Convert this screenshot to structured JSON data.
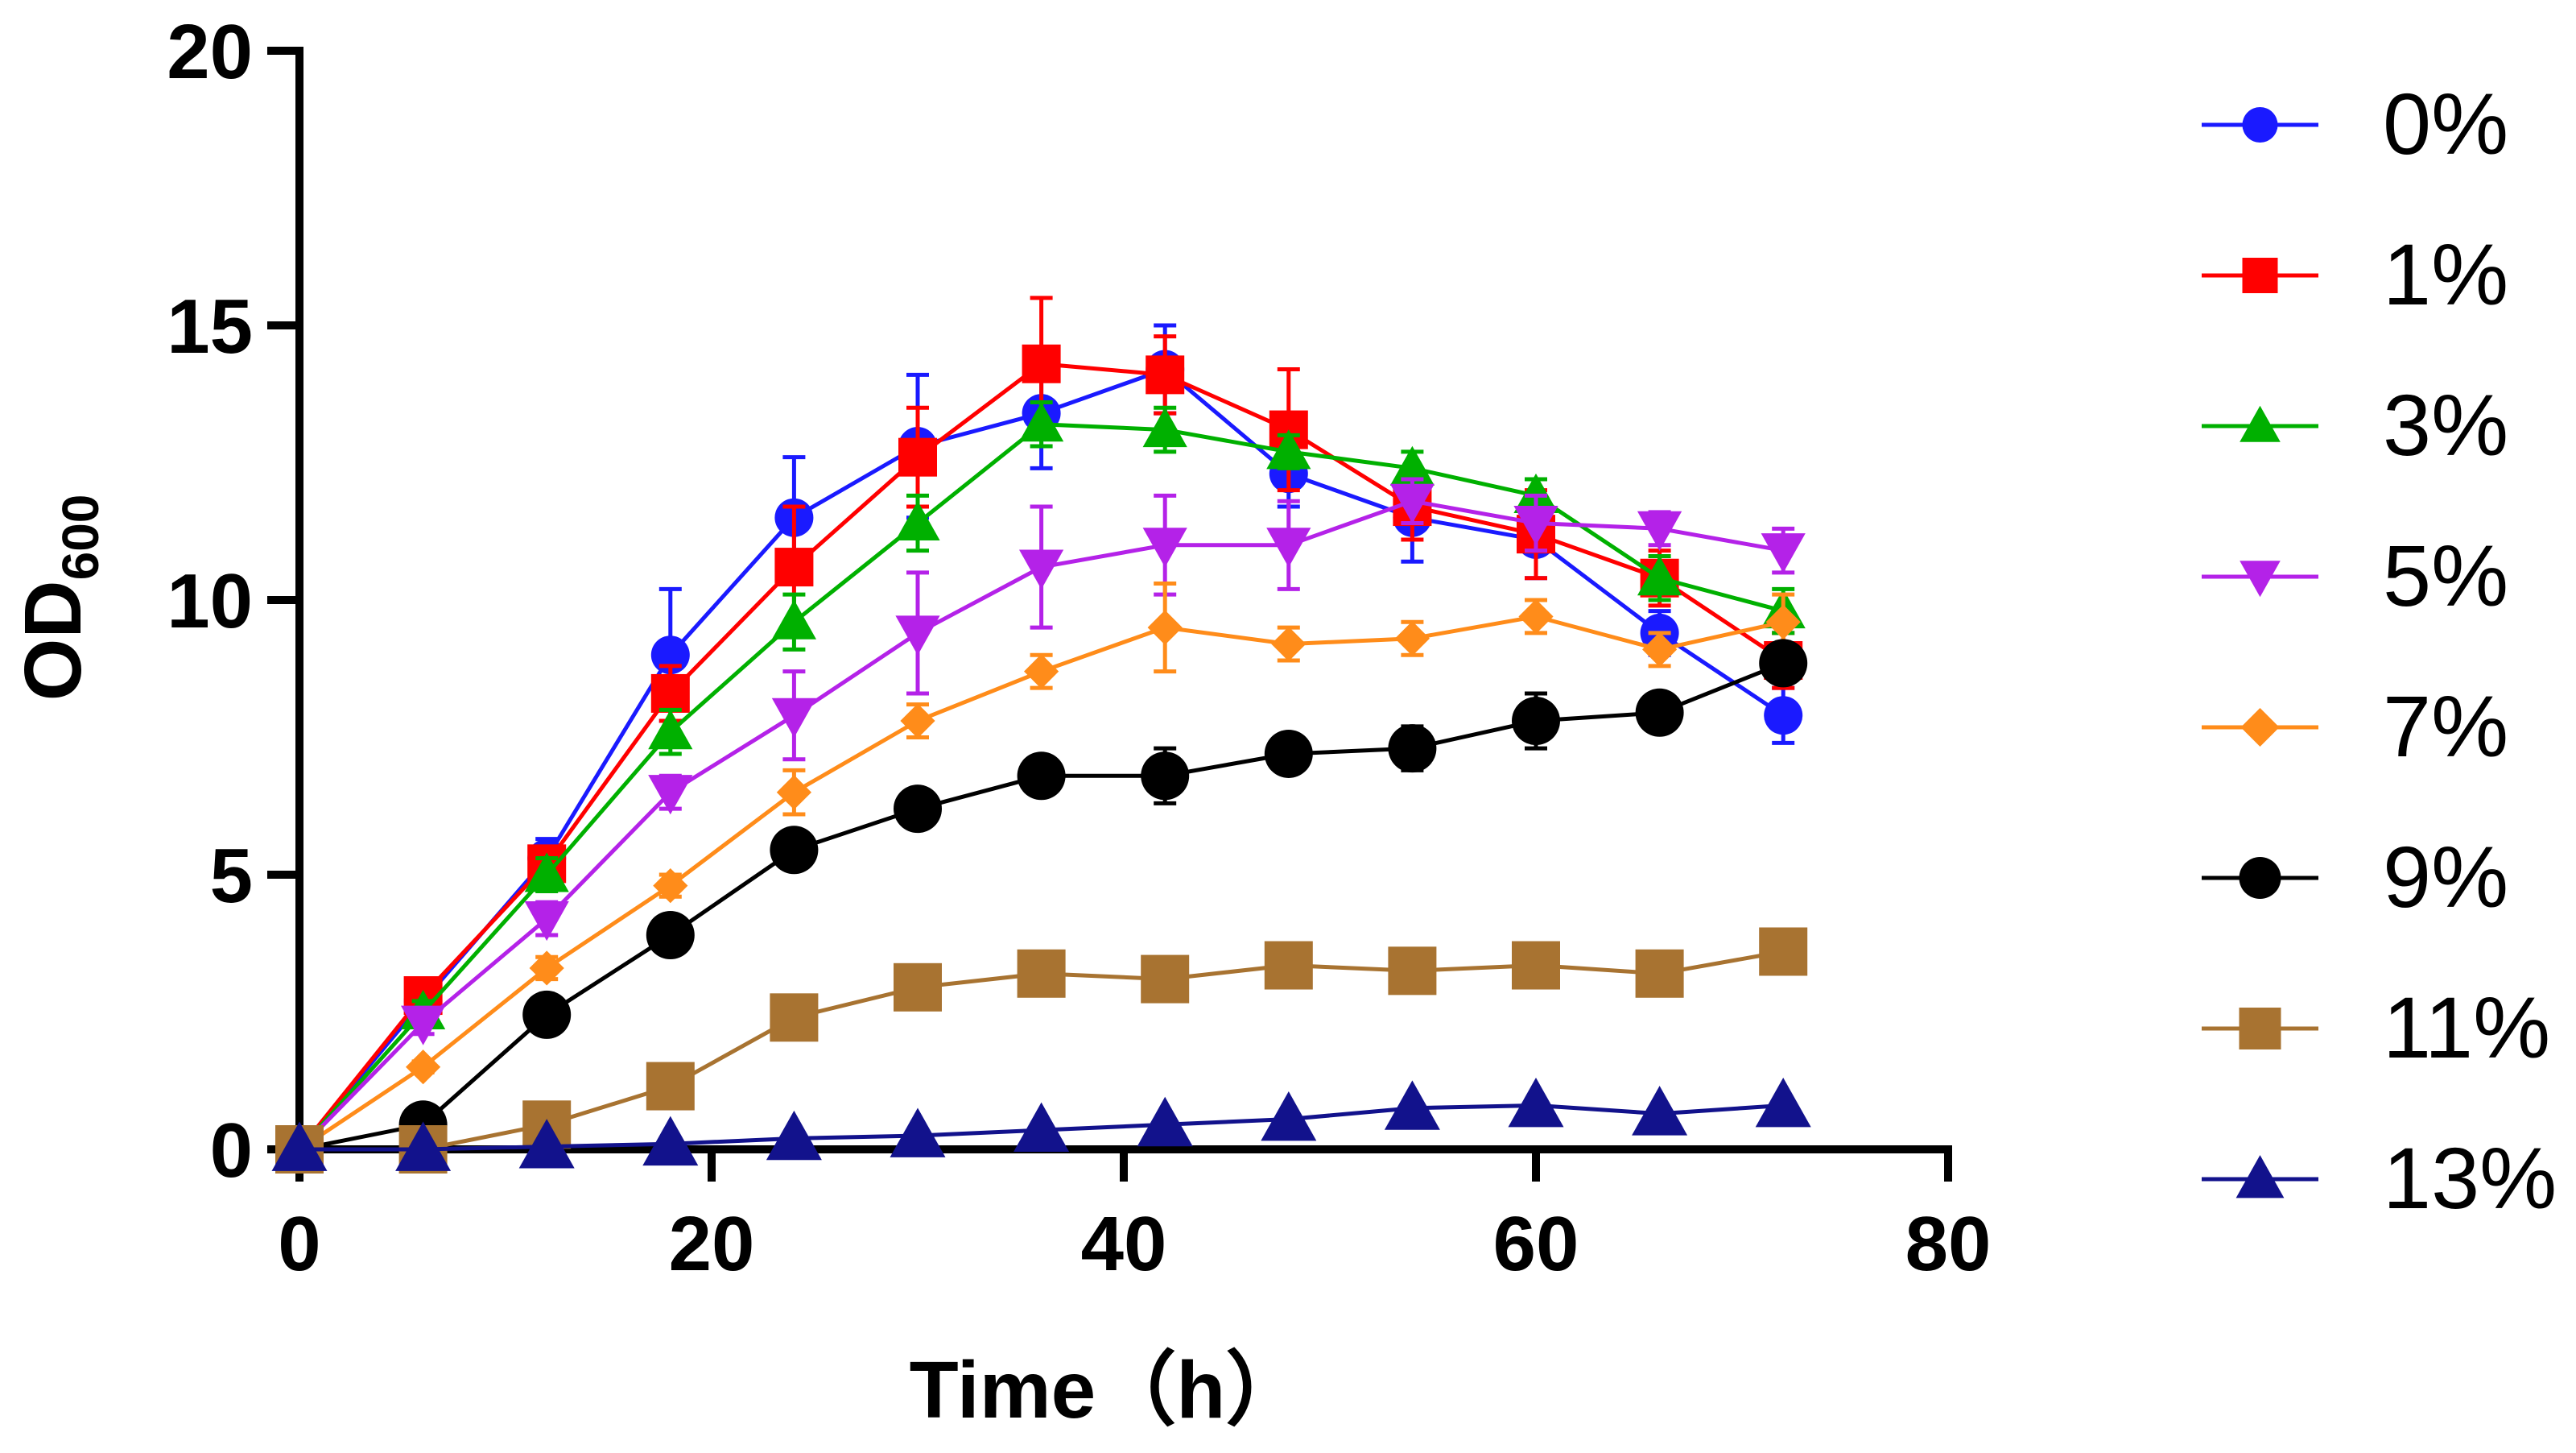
{
  "chart_data": {
    "type": "line",
    "title": "",
    "xlabel": "Time（h）",
    "ylabel_main": "OD",
    "ylabel_sub": "600",
    "xlim": [
      0,
      80
    ],
    "ylim": [
      0,
      20
    ],
    "xticks": [
      0,
      20,
      40,
      60,
      80
    ],
    "yticks": [
      0,
      5,
      10,
      15,
      20
    ],
    "x": [
      0,
      6,
      12,
      18,
      24,
      30,
      36,
      42,
      48,
      54,
      60,
      66,
      72
    ],
    "grid": false,
    "legend_position": "right",
    "series": [
      {
        "name": "0%",
        "color": "#1a1aff",
        "marker": "circle",
        "size": "medium",
        "values": [
          0.0,
          2.7,
          5.3,
          9.0,
          11.5,
          12.8,
          13.4,
          14.2,
          12.3,
          11.5,
          11.1,
          9.4,
          7.9
        ],
        "errors": [
          0.0,
          0.2,
          0.35,
          1.2,
          1.1,
          1.3,
          1.0,
          0.8,
          0.6,
          0.8,
          0.7,
          0.4,
          0.5
        ]
      },
      {
        "name": "1%",
        "color": "#ff0000",
        "marker": "square",
        "size": "medium",
        "values": [
          0.0,
          2.8,
          5.2,
          8.3,
          10.6,
          12.6,
          14.3,
          14.1,
          13.1,
          11.7,
          11.2,
          10.4,
          8.9
        ],
        "errors": [
          0.0,
          0.2,
          0.3,
          0.5,
          1.1,
          0.9,
          1.2,
          0.7,
          1.1,
          0.6,
          0.8,
          0.5,
          0.5
        ]
      },
      {
        "name": "3%",
        "color": "#00b000",
        "marker": "triangle-up",
        "size": "medium",
        "values": [
          0.0,
          2.5,
          5.0,
          7.6,
          9.6,
          11.4,
          13.2,
          13.1,
          12.7,
          12.4,
          11.9,
          10.4,
          9.8
        ],
        "errors": [
          0.0,
          0.2,
          0.3,
          0.4,
          0.5,
          0.5,
          0.4,
          0.4,
          0.3,
          0.3,
          0.3,
          0.4,
          0.4
        ]
      },
      {
        "name": "5%",
        "color": "#b422e8",
        "marker": "triangle-down",
        "size": "medium",
        "values": [
          0.0,
          2.3,
          4.2,
          6.5,
          7.9,
          9.4,
          10.6,
          11.0,
          11.0,
          11.8,
          11.4,
          11.3,
          10.9
        ],
        "errors": [
          0.0,
          0.2,
          0.3,
          0.3,
          0.8,
          1.1,
          1.1,
          0.9,
          0.8,
          0.4,
          0.5,
          0.3,
          0.4
        ]
      },
      {
        "name": "7%",
        "color": "#ff8c1a",
        "marker": "diamond",
        "size": "small",
        "values": [
          0.0,
          1.5,
          3.3,
          4.8,
          6.5,
          7.8,
          8.7,
          9.5,
          9.2,
          9.3,
          9.7,
          9.1,
          9.6
        ],
        "errors": [
          0.0,
          0.1,
          0.2,
          0.2,
          0.4,
          0.3,
          0.3,
          0.8,
          0.3,
          0.3,
          0.3,
          0.3,
          0.5
        ]
      },
      {
        "name": "9%",
        "color": "#000000",
        "marker": "circle",
        "size": "large",
        "values": [
          0.0,
          0.45,
          2.45,
          3.9,
          5.45,
          6.2,
          6.8,
          6.8,
          7.2,
          7.3,
          7.8,
          7.95,
          8.85
        ],
        "errors": [
          0.0,
          0.1,
          0.2,
          0.2,
          0.2,
          0.2,
          0.2,
          0.5,
          0.2,
          0.4,
          0.5,
          0.2,
          0.3
        ]
      },
      {
        "name": "11%",
        "color": "#a87331",
        "marker": "square",
        "size": "large",
        "values": [
          0.0,
          0.0,
          0.45,
          1.15,
          2.4,
          2.95,
          3.2,
          3.1,
          3.35,
          3.25,
          3.35,
          3.2,
          3.6
        ],
        "errors": [
          0.0,
          0.0,
          0.1,
          0.1,
          0.15,
          0.15,
          0.15,
          0.15,
          0.15,
          0.15,
          0.15,
          0.15,
          0.15
        ]
      },
      {
        "name": "13%",
        "color": "#12128c",
        "marker": "triangle-up",
        "size": "large",
        "values": [
          0.0,
          0.0,
          0.05,
          0.1,
          0.2,
          0.25,
          0.35,
          0.45,
          0.55,
          0.75,
          0.8,
          0.65,
          0.8
        ],
        "errors": [
          0.0,
          0.0,
          0.0,
          0.05,
          0.05,
          0.05,
          0.05,
          0.05,
          0.05,
          0.05,
          0.05,
          0.05,
          0.05
        ]
      }
    ]
  }
}
